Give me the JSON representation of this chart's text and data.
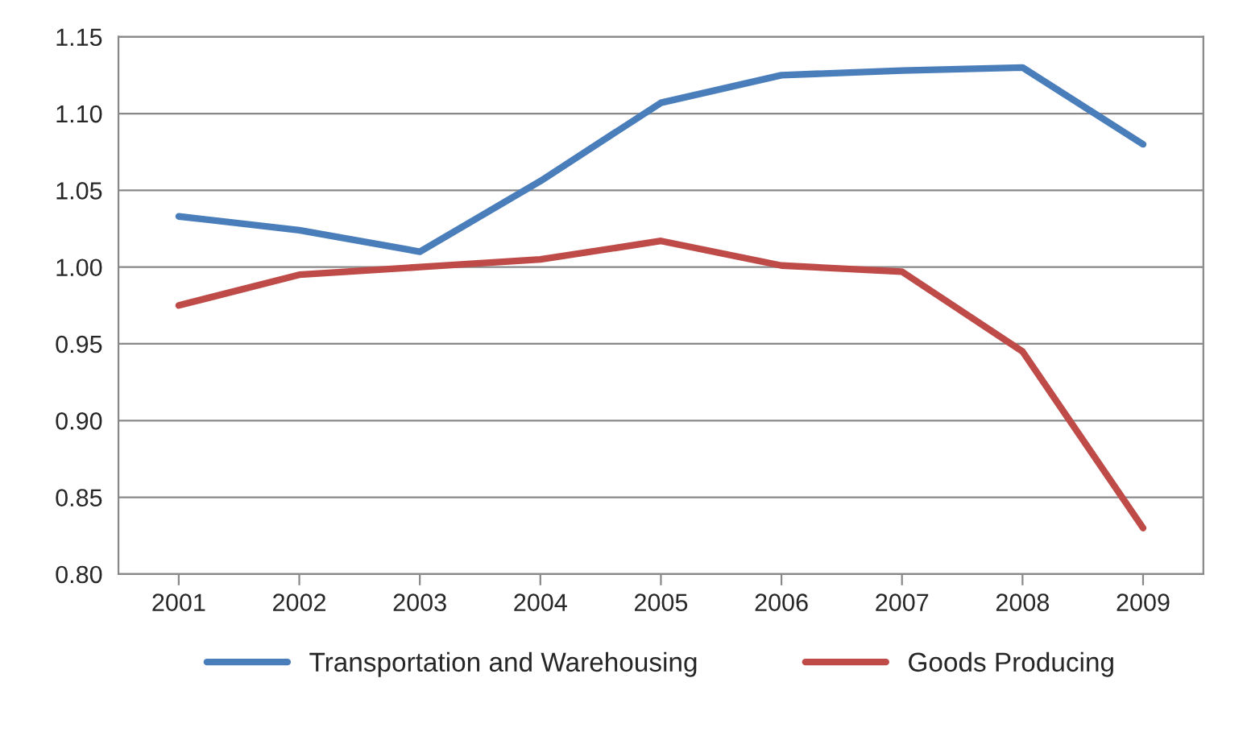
{
  "chart_data": {
    "type": "line",
    "categories": [
      "2001",
      "2002",
      "2003",
      "2004",
      "2005",
      "2006",
      "2007",
      "2008",
      "2009"
    ],
    "series": [
      {
        "name": "Transportation and Warehousing",
        "color": "#4a7ebb",
        "values": [
          1.033,
          1.024,
          1.01,
          1.056,
          1.107,
          1.125,
          1.128,
          1.13,
          1.08
        ]
      },
      {
        "name": "Goods Producing",
        "color": "#be4b48",
        "values": [
          0.975,
          0.995,
          1.0,
          1.005,
          1.017,
          1.001,
          0.997,
          0.945,
          0.83
        ]
      }
    ],
    "ylim": [
      0.8,
      1.15
    ],
    "yticks": [
      {
        "value": 0.8,
        "label": "0.80"
      },
      {
        "value": 0.85,
        "label": "0.85"
      },
      {
        "value": 0.9,
        "label": "0.90"
      },
      {
        "value": 0.95,
        "label": "0.95"
      },
      {
        "value": 1.0,
        "label": "1.00"
      },
      {
        "value": 1.05,
        "label": "1.05"
      },
      {
        "value": 1.1,
        "label": "1.10"
      },
      {
        "value": 1.15,
        "label": "1.15"
      }
    ],
    "grid": "y",
    "legend": "bottom",
    "marker": "none",
    "line_style": "solid"
  }
}
